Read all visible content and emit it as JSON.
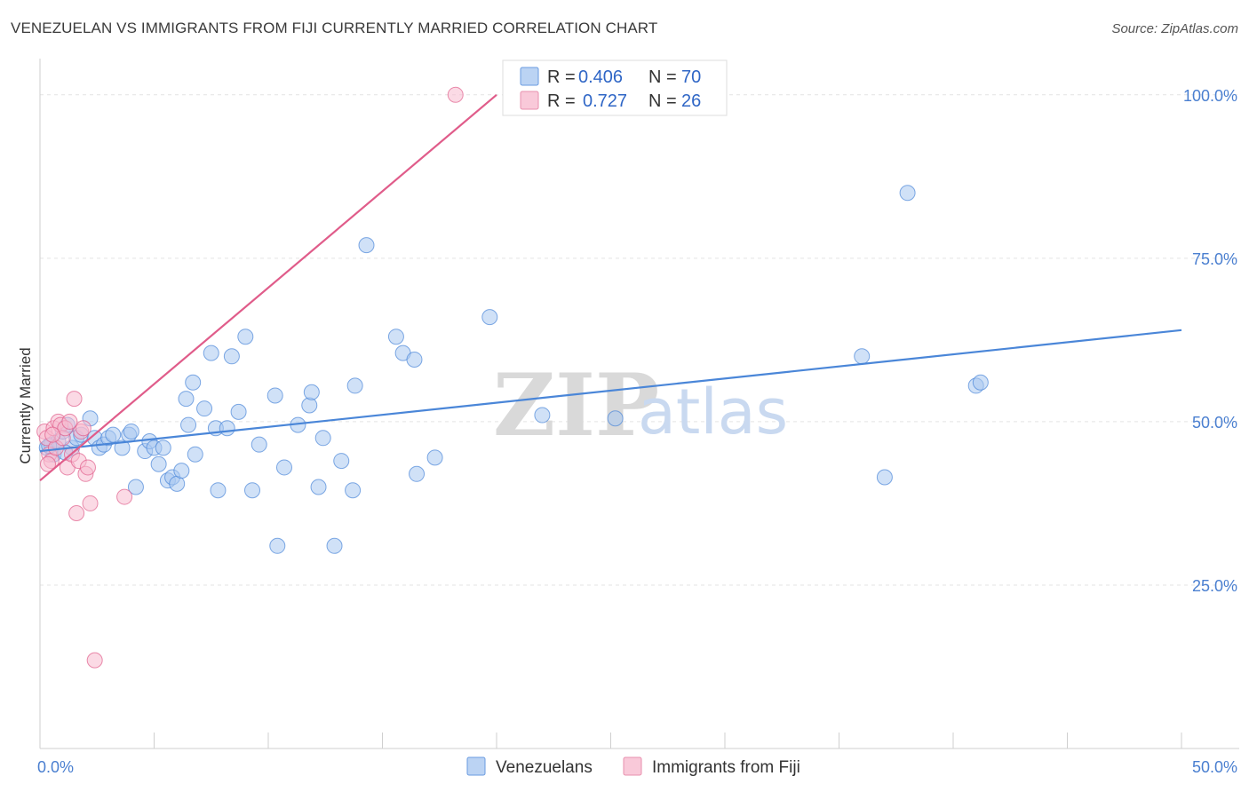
{
  "title": "VENEZUELAN VS IMMIGRANTS FROM FIJI CURRENTLY MARRIED CORRELATION CHART",
  "source": "Source: ZipAtlas.com",
  "watermark": {
    "zip": "ZIP",
    "atlas": "atlas"
  },
  "legend_top": [
    {
      "r_label": "R =",
      "r_value": "0.406",
      "n_label": "N =",
      "n_value": "70",
      "color": "#aac8f0",
      "stroke": "#6a9be0"
    },
    {
      "r_label": "R =",
      "r_value": "0.727",
      "n_label": "N =",
      "n_value": "26",
      "color": "#f8bcd0",
      "stroke": "#e890ae"
    }
  ],
  "legend_bottom": [
    {
      "label": "Venezuelans",
      "color": "#aac8f0",
      "stroke": "#6a9be0"
    },
    {
      "label": "Immigrants from Fiji",
      "color": "#f8bcd0",
      "stroke": "#e890ae"
    }
  ],
  "chart_data": {
    "type": "scatter",
    "title": "VENEZUELAN VS IMMIGRANTS FROM FIJI CURRENTLY MARRIED CORRELATION CHART",
    "xlabel": "",
    "ylabel": "Currently Married",
    "xlim": [
      0,
      50
    ],
    "ylim": [
      0,
      105
    ],
    "x_tick_labels": [
      "0.0%",
      "50.0%"
    ],
    "y_ticks": [
      25,
      50,
      75,
      100
    ],
    "y_tick_labels": [
      "25.0%",
      "50.0%",
      "75.0%",
      "100.0%"
    ],
    "grid": true,
    "legend_position": "top-center",
    "series": [
      {
        "name": "Venezuelans",
        "color": "#4a86d8",
        "fill": "#aac8f0",
        "trend": {
          "x": [
            0,
            50
          ],
          "y": [
            45.5,
            64.0
          ]
        },
        "points": [
          [
            0.3,
            46.0
          ],
          [
            0.5,
            46.5
          ],
          [
            0.6,
            45.0
          ],
          [
            0.8,
            47.0
          ],
          [
            1.0,
            48.5
          ],
          [
            1.2,
            49.5
          ],
          [
            1.4,
            46.0
          ],
          [
            1.6,
            47.5
          ],
          [
            1.8,
            48.0
          ],
          [
            2.2,
            50.5
          ],
          [
            2.4,
            47.5
          ],
          [
            2.6,
            46.0
          ],
          [
            2.8,
            46.5
          ],
          [
            3.0,
            47.5
          ],
          [
            3.2,
            48.0
          ],
          [
            3.6,
            46.0
          ],
          [
            3.9,
            48.0
          ],
          [
            4.0,
            48.5
          ],
          [
            4.2,
            40.0
          ],
          [
            4.6,
            45.5
          ],
          [
            4.8,
            47.0
          ],
          [
            5.0,
            46.0
          ],
          [
            5.2,
            43.5
          ],
          [
            5.4,
            46.0
          ],
          [
            5.6,
            41.0
          ],
          [
            5.8,
            41.5
          ],
          [
            6.0,
            40.5
          ],
          [
            6.2,
            42.5
          ],
          [
            6.4,
            53.5
          ],
          [
            6.5,
            49.5
          ],
          [
            6.7,
            56.0
          ],
          [
            6.8,
            45.0
          ],
          [
            7.2,
            52.0
          ],
          [
            7.5,
            60.5
          ],
          [
            7.7,
            49.0
          ],
          [
            7.8,
            39.5
          ],
          [
            8.2,
            49.0
          ],
          [
            8.4,
            60.0
          ],
          [
            8.7,
            51.5
          ],
          [
            9.0,
            63.0
          ],
          [
            9.3,
            39.5
          ],
          [
            9.6,
            46.5
          ],
          [
            10.3,
            54.0
          ],
          [
            10.4,
            31.0
          ],
          [
            10.7,
            43.0
          ],
          [
            11.3,
            49.5
          ],
          [
            11.8,
            52.5
          ],
          [
            11.9,
            54.5
          ],
          [
            12.2,
            40.0
          ],
          [
            12.4,
            47.5
          ],
          [
            12.9,
            31.0
          ],
          [
            13.2,
            44.0
          ],
          [
            13.7,
            39.5
          ],
          [
            13.8,
            55.5
          ],
          [
            14.3,
            77.0
          ],
          [
            15.6,
            63.0
          ],
          [
            15.9,
            60.5
          ],
          [
            16.4,
            59.5
          ],
          [
            16.5,
            42.0
          ],
          [
            17.3,
            44.5
          ],
          [
            19.7,
            66.0
          ],
          [
            22.0,
            51.0
          ],
          [
            25.2,
            50.5
          ],
          [
            36.0,
            60.0
          ],
          [
            37.0,
            41.5
          ],
          [
            38.0,
            85.0
          ],
          [
            41.0,
            55.5
          ],
          [
            41.2,
            56.0
          ],
          [
            0.4,
            46.3
          ],
          [
            1.1,
            45.3
          ]
        ]
      },
      {
        "name": "Immigrants from Fiji",
        "color": "#e05c8a",
        "fill": "#f8bcd0",
        "trend": {
          "x": [
            0,
            20
          ],
          "y": [
            41.0,
            100.0
          ]
        },
        "points": [
          [
            0.2,
            48.5
          ],
          [
            0.3,
            47.5
          ],
          [
            0.4,
            45.0
          ],
          [
            0.5,
            44.0
          ],
          [
            0.6,
            49.0
          ],
          [
            0.7,
            46.0
          ],
          [
            0.8,
            50.0
          ],
          [
            0.9,
            49.5
          ],
          [
            1.0,
            47.5
          ],
          [
            1.1,
            49.0
          ],
          [
            1.2,
            43.0
          ],
          [
            1.3,
            50.0
          ],
          [
            1.4,
            45.0
          ],
          [
            1.5,
            53.5
          ],
          [
            1.6,
            36.0
          ],
          [
            1.7,
            44.0
          ],
          [
            1.8,
            48.5
          ],
          [
            1.9,
            49.0
          ],
          [
            2.0,
            42.0
          ],
          [
            2.1,
            43.0
          ],
          [
            2.2,
            37.5
          ],
          [
            2.4,
            13.5
          ],
          [
            3.7,
            38.5
          ],
          [
            18.2,
            100.0
          ],
          [
            0.35,
            43.5
          ],
          [
            0.55,
            48.0
          ]
        ]
      }
    ]
  }
}
